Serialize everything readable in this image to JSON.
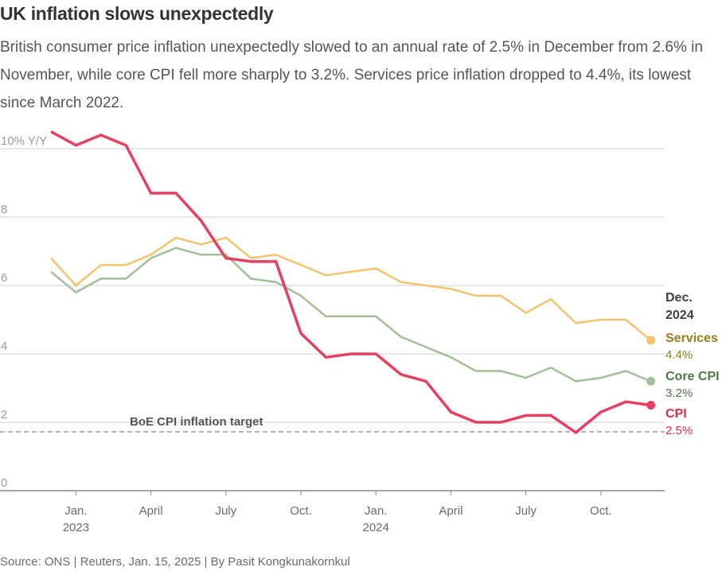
{
  "title": "UK inflation slows unexpectedly",
  "subtitle": "British consumer price inflation unexpectedly slowed to an annual rate of 2.5% in December from 2.6% in November, while core CPI fell more sharply to 3.2%. Services price inflation dropped to 4.4%, its lowest since March 2022.",
  "source": "Source: ONS | Reuters, Jan. 15, 2025 | By Pasit Kongkunakornkul",
  "chart_data": {
    "type": "line",
    "title": "UK inflation slows unexpectedly",
    "ylabel": "",
    "ylim": [
      0,
      10
    ],
    "yticks": [
      {
        "value": 10,
        "label": "10% Y/Y"
      },
      {
        "value": 8,
        "label": "8"
      },
      {
        "value": 6,
        "label": "6"
      },
      {
        "value": 4,
        "label": "4"
      },
      {
        "value": 2,
        "label": "2"
      },
      {
        "value": 0,
        "label": "0"
      }
    ],
    "x": [
      "2022-12",
      "2023-01",
      "2023-02",
      "2023-03",
      "2023-04",
      "2023-05",
      "2023-06",
      "2023-07",
      "2023-08",
      "2023-09",
      "2023-10",
      "2023-11",
      "2023-12",
      "2024-01",
      "2024-02",
      "2024-03",
      "2024-04",
      "2024-05",
      "2024-06",
      "2024-07",
      "2024-08",
      "2024-09",
      "2024-10",
      "2024-11",
      "2024-12"
    ],
    "xticks": [
      {
        "x": "2023-01",
        "label": "Jan.",
        "sublabel": "2023"
      },
      {
        "x": "2023-04",
        "label": "April",
        "sublabel": ""
      },
      {
        "x": "2023-07",
        "label": "July",
        "sublabel": ""
      },
      {
        "x": "2023-10",
        "label": "Oct.",
        "sublabel": ""
      },
      {
        "x": "2024-01",
        "label": "Jan.",
        "sublabel": "2024"
      },
      {
        "x": "2024-04",
        "label": "April",
        "sublabel": ""
      },
      {
        "x": "2024-07",
        "label": "July",
        "sublabel": ""
      },
      {
        "x": "2024-10",
        "label": "Oct.",
        "sublabel": ""
      }
    ],
    "series": [
      {
        "name": "Services",
        "color": "#f2c46d",
        "label_color": "#9a7a1e",
        "value_label": "4.4%",
        "values": [
          6.8,
          6.0,
          6.6,
          6.6,
          6.9,
          7.4,
          7.2,
          7.4,
          6.8,
          6.9,
          6.6,
          6.3,
          6.4,
          6.5,
          6.1,
          6.0,
          5.9,
          5.7,
          5.7,
          5.2,
          5.6,
          4.9,
          5.0,
          5.0,
          4.4
        ]
      },
      {
        "name": "Core CPI",
        "color": "#a3bf99",
        "label_color": "#4f7a44",
        "value_label": "3.2%",
        "values": [
          6.4,
          5.8,
          6.2,
          6.2,
          6.8,
          7.1,
          6.9,
          6.9,
          6.2,
          6.1,
          5.7,
          5.1,
          5.1,
          5.1,
          4.5,
          4.2,
          3.9,
          3.5,
          3.5,
          3.3,
          3.6,
          3.2,
          3.3,
          3.5,
          3.2
        ]
      },
      {
        "name": "CPI",
        "color": "#e5405f",
        "label_color": "#d9304f",
        "value_label": "2.5%",
        "values": [
          10.5,
          10.1,
          10.4,
          10.1,
          8.7,
          8.7,
          7.9,
          6.8,
          6.7,
          6.7,
          4.6,
          3.9,
          4.0,
          4.0,
          3.4,
          3.2,
          2.3,
          2.0,
          2.0,
          2.2,
          2.2,
          1.7,
          2.3,
          2.6,
          2.5
        ]
      }
    ],
    "end_label": [
      "Dec.",
      "2024"
    ],
    "reference_line": {
      "value": 2,
      "label": "BoE CPI inflation target"
    },
    "grid": true,
    "legend": "direct labels at line ends"
  }
}
